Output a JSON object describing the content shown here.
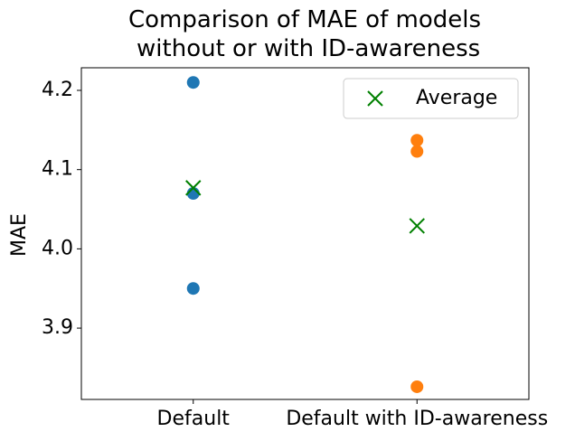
{
  "chart_data": {
    "type": "scatter",
    "title": "Comparison of MAE of models\n without or with ID-awareness",
    "ylabel": "MAE",
    "xlim": [
      -0.5,
      1.5
    ],
    "xticks": [
      {
        "value": 0,
        "label": "Default"
      },
      {
        "value": 1,
        "label": "Default with ID-awareness"
      }
    ],
    "ylim": [
      3.81,
      4.2285
    ],
    "yticks": [
      {
        "value": 3.9,
        "label": "3.9"
      },
      {
        "value": 4.0,
        "label": "4.0"
      },
      {
        "value": 4.1,
        "label": "4.1"
      },
      {
        "value": 4.2,
        "label": "4.2"
      }
    ],
    "grid": false,
    "legend": "upper right",
    "series": [
      {
        "color": "#1f77b4",
        "marker": "circle",
        "x": [
          0,
          0,
          0
        ],
        "values": [
          4.21,
          4.07,
          3.95
        ]
      },
      {
        "color": "#ff7f0e",
        "marker": "circle",
        "x": [
          1,
          1,
          1
        ],
        "values": [
          4.137,
          4.123,
          3.826
        ]
      },
      {
        "name": "Average",
        "color": "#008000",
        "marker": "x",
        "x": [
          0,
          1
        ],
        "values": [
          4.077,
          4.029
        ]
      }
    ]
  }
}
